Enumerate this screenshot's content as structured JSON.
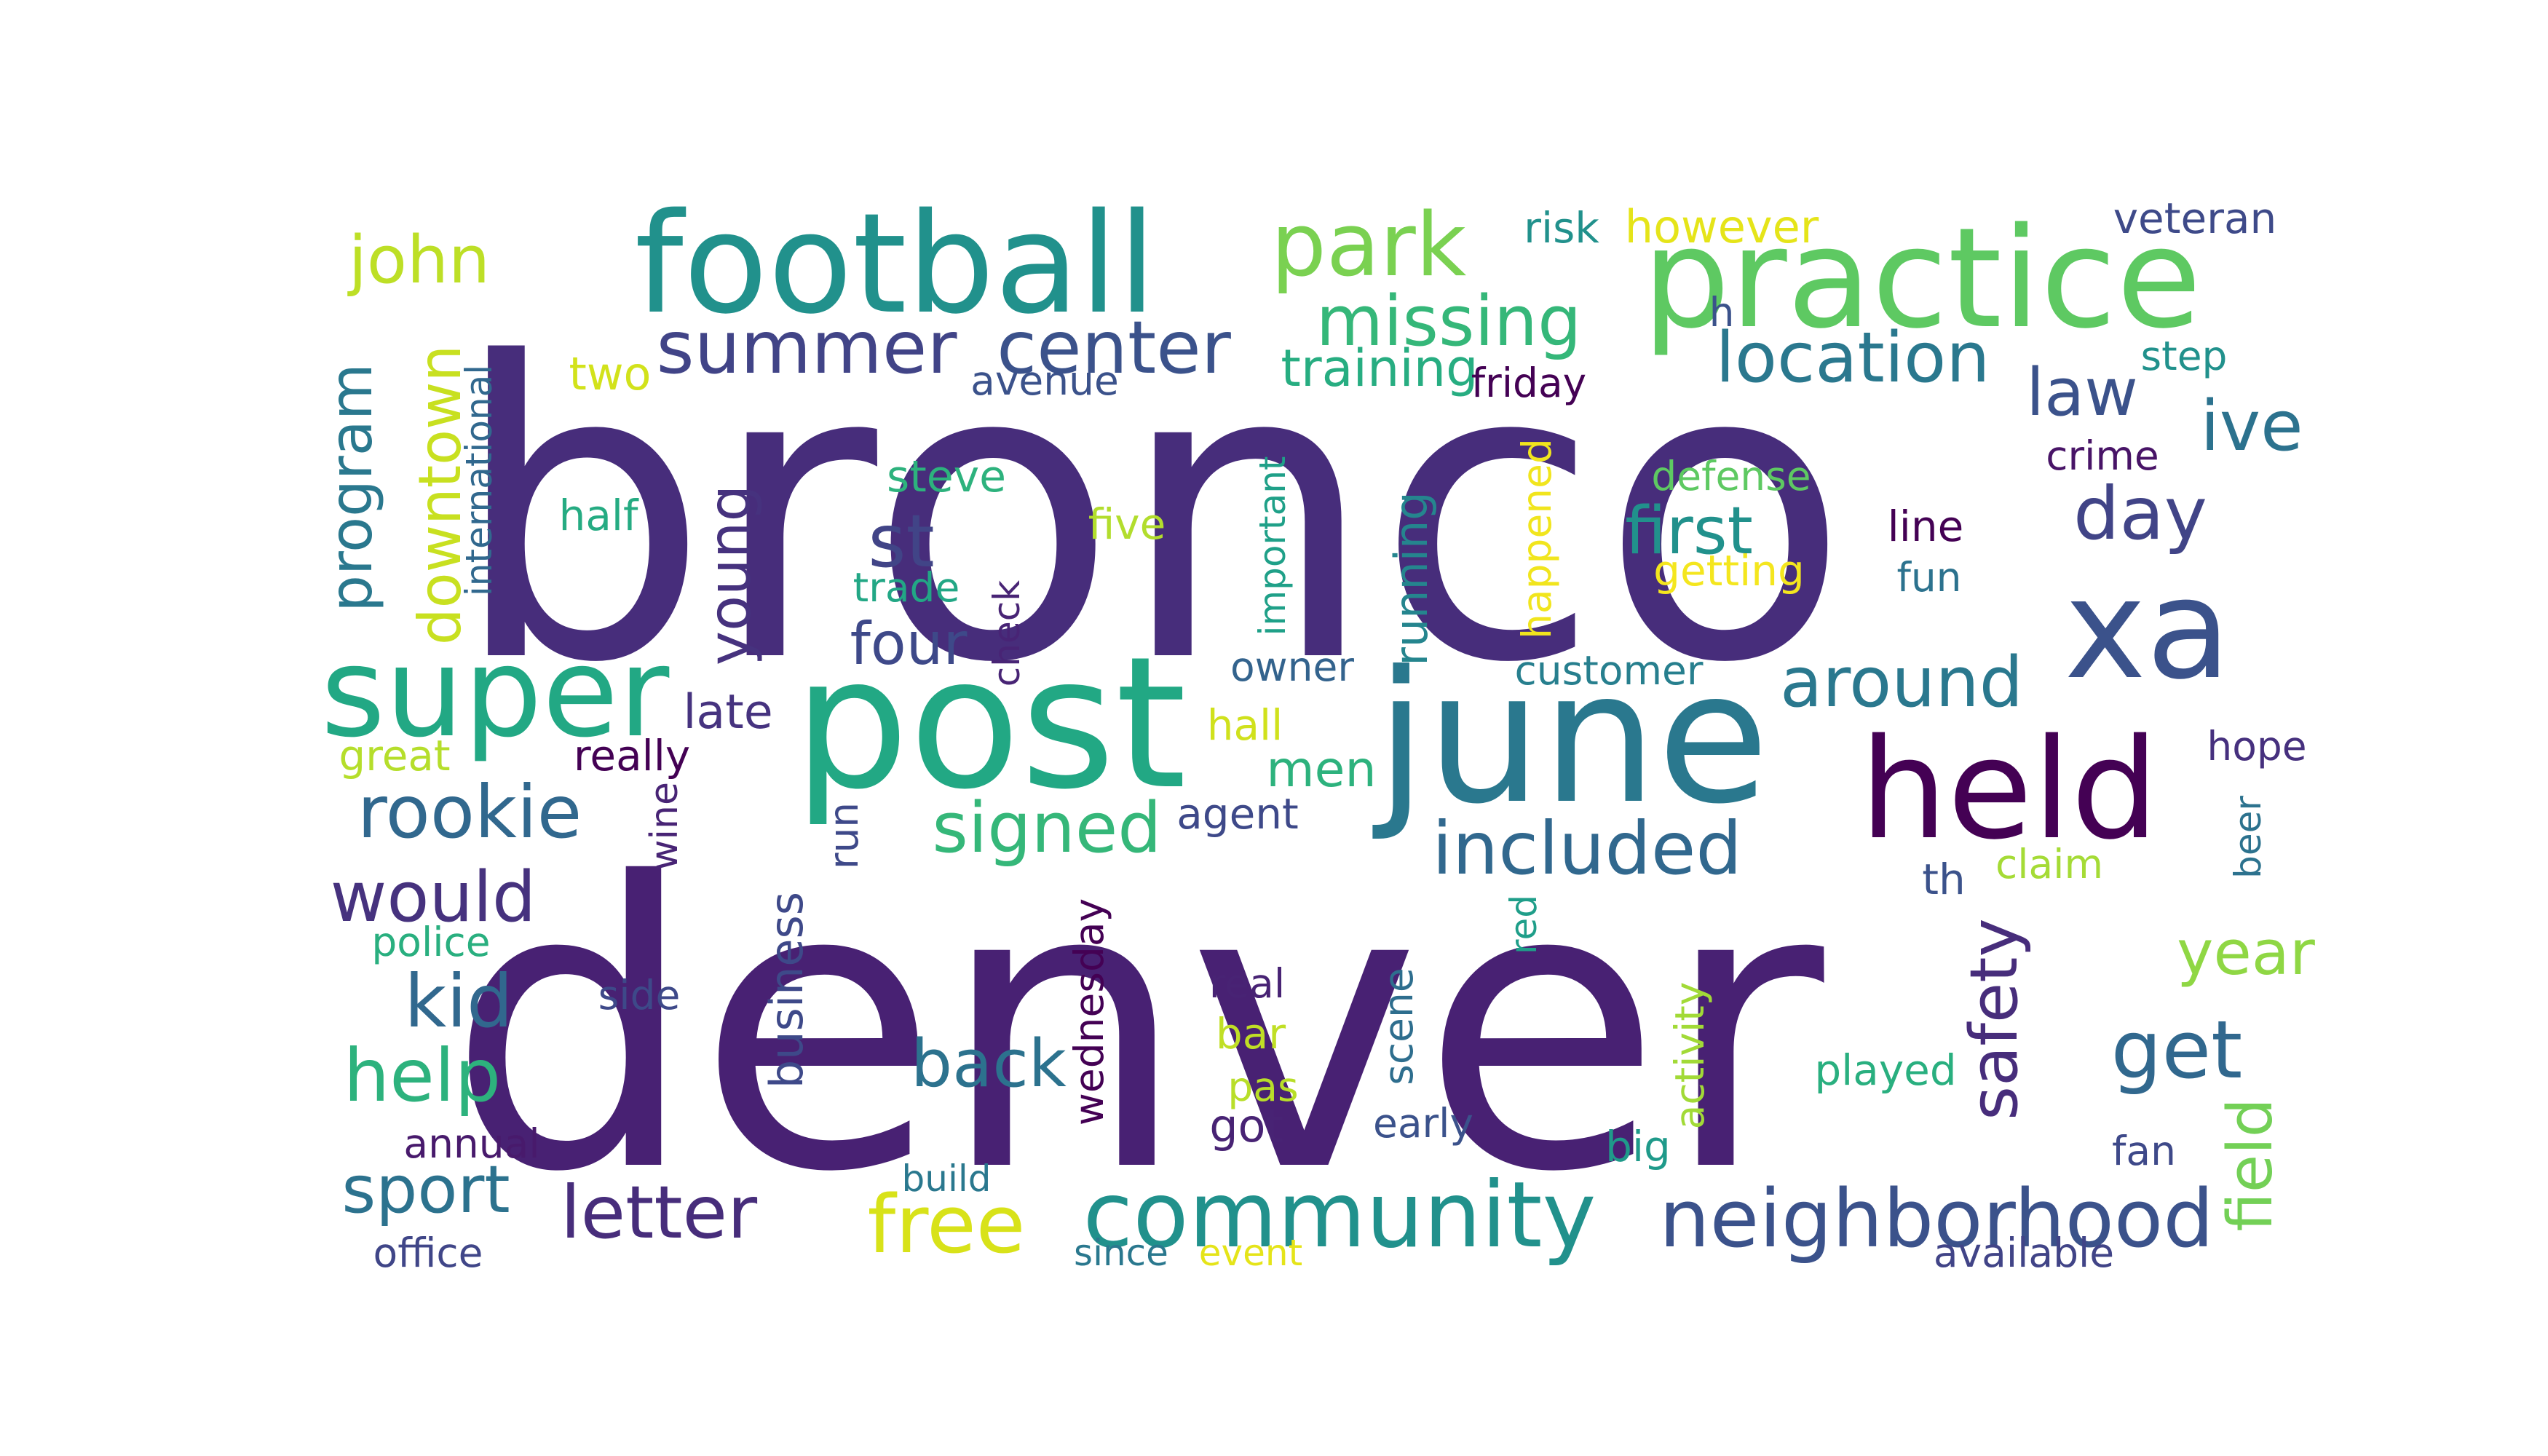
{
  "words": [
    {
      "text": "bronco",
      "color": "#472d7b"
    },
    {
      "text": "denver",
      "color": "#482173"
    },
    {
      "text": "post",
      "color": "#22a884"
    },
    {
      "text": "june",
      "color": "#2a788e"
    },
    {
      "text": "practice",
      "color": "#5ec962"
    },
    {
      "text": "football",
      "color": "#21918c"
    },
    {
      "text": "held",
      "color": "#440154"
    },
    {
      "text": "xa",
      "color": "#3b528b"
    },
    {
      "text": "super",
      "color": "#22a884"
    },
    {
      "text": "community",
      "color": "#21918c"
    },
    {
      "text": "neighborhood",
      "color": "#3b528b"
    },
    {
      "text": "park",
      "color": "#7ad151"
    },
    {
      "text": "center",
      "color": "#3b528b"
    },
    {
      "text": "missing",
      "color": "#35b779"
    },
    {
      "text": "summer",
      "color": "#414487"
    },
    {
      "text": "location",
      "color": "#2a788e"
    },
    {
      "text": "included",
      "color": "#31688e"
    },
    {
      "text": "free",
      "color": "#d8e219"
    },
    {
      "text": "rookie",
      "color": "#31688e"
    },
    {
      "text": "signed",
      "color": "#35b779"
    },
    {
      "text": "letter",
      "color": "#472d7b"
    },
    {
      "text": "around",
      "color": "#2a788e"
    },
    {
      "text": "first",
      "color": "#21918c"
    },
    {
      "text": "day",
      "color": "#414487"
    },
    {
      "text": "get",
      "color": "#31688e"
    },
    {
      "text": "would",
      "color": "#46327e"
    },
    {
      "text": "help",
      "color": "#2db27d"
    },
    {
      "text": "kid",
      "color": "#31688e"
    },
    {
      "text": "sport",
      "color": "#2c728e"
    },
    {
      "text": "back",
      "color": "#2c728e"
    },
    {
      "text": "st",
      "color": "#414487"
    },
    {
      "text": "law",
      "color": "#3b528b"
    },
    {
      "text": "ive",
      "color": "#2c728e"
    },
    {
      "text": "year",
      "color": "#8fd744"
    },
    {
      "text": "john",
      "color": "#bddf26"
    },
    {
      "text": "safety",
      "color": "#472d7b"
    },
    {
      "text": "field",
      "color": "#73d056"
    },
    {
      "text": "four",
      "color": "#3e4989"
    },
    {
      "text": "program",
      "color": "#2a788e"
    },
    {
      "text": "downtown",
      "color": "#c8e020"
    },
    {
      "text": "young",
      "color": "#46327e"
    },
    {
      "text": "men",
      "color": "#2db27d"
    },
    {
      "text": "late",
      "color": "#46337f"
    },
    {
      "text": "training",
      "color": "#27ad81"
    },
    {
      "text": "however",
      "color": "#e5e419"
    },
    {
      "text": "veteran",
      "color": "#3e4a89"
    },
    {
      "text": "risk",
      "color": "#21918c"
    },
    {
      "text": "two",
      "color": "#d2e21b"
    },
    {
      "text": "avenue",
      "color": "#3b528b"
    },
    {
      "text": "friday",
      "color": "#440154"
    },
    {
      "text": "step",
      "color": "#21918c"
    },
    {
      "text": "h",
      "color": "#3b528b"
    },
    {
      "text": "international",
      "color": "#31688e"
    },
    {
      "text": "steve",
      "color": "#2db27d"
    },
    {
      "text": "half",
      "color": "#25ab82"
    },
    {
      "text": "five",
      "color": "#b2dd2d"
    },
    {
      "text": "trade",
      "color": "#22a785"
    },
    {
      "text": "check",
      "color": "#482475"
    },
    {
      "text": "important",
      "color": "#1fa088"
    },
    {
      "text": "running",
      "color": "#25858e"
    },
    {
      "text": "happened",
      "color": "#f1e51d"
    },
    {
      "text": "defense",
      "color": "#5ec962"
    },
    {
      "text": "getting",
      "color": "#f4e61e"
    },
    {
      "text": "line",
      "color": "#440154"
    },
    {
      "text": "fun",
      "color": "#2c728e"
    },
    {
      "text": "crime",
      "color": "#481467"
    },
    {
      "text": "owner",
      "color": "#33638d"
    },
    {
      "text": "customer",
      "color": "#277f8e"
    },
    {
      "text": "hall",
      "color": "#d0e11c"
    },
    {
      "text": "hope",
      "color": "#46307e"
    },
    {
      "text": "great",
      "color": "#b5de2b"
    },
    {
      "text": "really",
      "color": "#440154"
    },
    {
      "text": "agent",
      "color": "#3e4989"
    },
    {
      "text": "run",
      "color": "#3e4989"
    },
    {
      "text": "wine",
      "color": "#482475"
    },
    {
      "text": "claim",
      "color": "#a5db36"
    },
    {
      "text": "beer",
      "color": "#2c728e"
    },
    {
      "text": "th",
      "color": "#3b528b"
    },
    {
      "text": "police",
      "color": "#29af7f"
    },
    {
      "text": "business",
      "color": "#3e4989"
    },
    {
      "text": "wednesday",
      "color": "#440154"
    },
    {
      "text": "red",
      "color": "#1f9e89"
    },
    {
      "text": "activity",
      "color": "#a2da37"
    },
    {
      "text": "side",
      "color": "#3e4989"
    },
    {
      "text": "real",
      "color": "#482374"
    },
    {
      "text": "bar",
      "color": "#c0df25"
    },
    {
      "text": "pas",
      "color": "#b8de29"
    },
    {
      "text": "scene",
      "color": "#2e6e8e"
    },
    {
      "text": "played",
      "color": "#29af7f"
    },
    {
      "text": "got",
      "color": "#482374"
    },
    {
      "text": "early",
      "color": "#3b528b"
    },
    {
      "text": "annual",
      "color": "#481a6c"
    },
    {
      "text": "big",
      "color": "#1f9a8a"
    },
    {
      "text": "fan",
      "color": "#3e4989"
    },
    {
      "text": "build",
      "color": "#2a788e"
    },
    {
      "text": "office",
      "color": "#404688"
    },
    {
      "text": "since",
      "color": "#2a788e"
    },
    {
      "text": "event",
      "color": "#e5e419"
    },
    {
      "text": "available",
      "color": "#414487"
    }
  ]
}
